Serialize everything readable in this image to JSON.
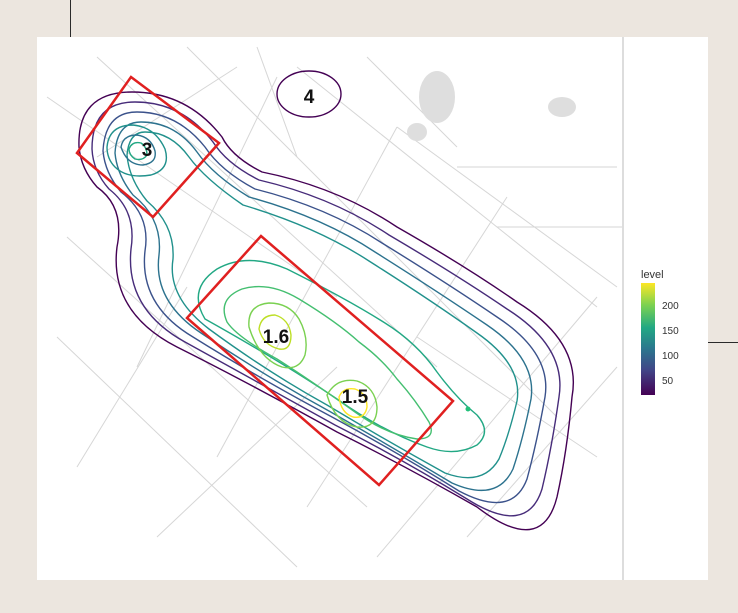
{
  "zones": [
    {
      "label": "3"
    },
    {
      "label": "4"
    },
    {
      "label": "1.6"
    },
    {
      "label": "1.5"
    }
  ],
  "legend": {
    "title": "level",
    "ticks": [
      "200",
      "150",
      "100",
      "50"
    ],
    "colormap": "viridis",
    "low_color": "#440154",
    "high_color": "#fde725"
  },
  "colors": {
    "hotspot_box": "#e02020",
    "background_map_roads": "#d8d8d8",
    "frame": "#ece6df"
  }
}
